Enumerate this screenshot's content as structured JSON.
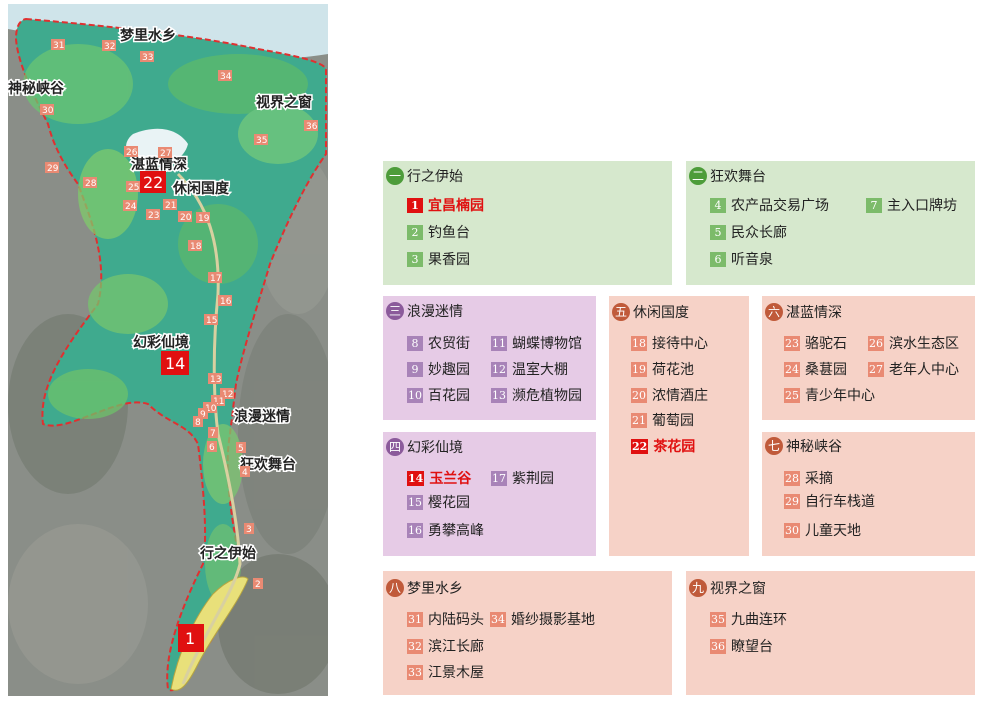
{
  "map": {
    "labels": {
      "mengli": "梦里水乡",
      "shenmi": "神秘峡谷",
      "shijie": "视界之窗",
      "zhanlan": "湛蓝情深",
      "xiuxian": "休闲国度",
      "huancai": "幻彩仙境",
      "langman": "浪漫迷情",
      "kuanghuan": "狂欢舞台",
      "xingzhi": "行之伊始"
    },
    "markers": [
      "31",
      "32",
      "33",
      "34",
      "30",
      "35",
      "36",
      "26",
      "27",
      "25",
      "23",
      "24",
      "21",
      "20",
      "19",
      "18",
      "28",
      "29",
      "17",
      "16",
      "15",
      "13",
      "12",
      "11",
      "10",
      "9",
      "8",
      "7",
      "6",
      "5",
      "4",
      "3",
      "2"
    ],
    "big": {
      "start": "1",
      "tea": "22",
      "magnolia": "14"
    }
  },
  "legend": {
    "s1": {
      "num": "一",
      "title": "行之伊始",
      "items": [
        {
          "n": "1",
          "t": "宜昌楠园"
        },
        {
          "n": "2",
          "t": "钓鱼台"
        },
        {
          "n": "3",
          "t": "果香园"
        }
      ]
    },
    "s2": {
      "num": "二",
      "title": "狂欢舞台",
      "items": [
        {
          "n": "4",
          "t": "农产品交易广场"
        },
        {
          "n": "7",
          "t": "主入口牌坊"
        },
        {
          "n": "5",
          "t": "民众长廊"
        },
        {
          "n": "6",
          "t": "听音泉"
        }
      ]
    },
    "s3": {
      "num": "三",
      "title": "浪漫迷情",
      "items": [
        {
          "n": "8",
          "t": "农贸街"
        },
        {
          "n": "11",
          "t": "蝴蝶博物馆"
        },
        {
          "n": "9",
          "t": "妙趣园"
        },
        {
          "n": "12",
          "t": "温室大棚"
        },
        {
          "n": "10",
          "t": "百花园"
        },
        {
          "n": "13",
          "t": "濒危植物园"
        }
      ]
    },
    "s4": {
      "num": "四",
      "title": "幻彩仙境",
      "items": [
        {
          "n": "14",
          "t": "玉兰谷"
        },
        {
          "n": "17",
          "t": "紫荆园"
        },
        {
          "n": "15",
          "t": "樱花园"
        },
        {
          "n": "16",
          "t": "勇攀高峰"
        }
      ]
    },
    "s5": {
      "num": "五",
      "title": "休闲国度",
      "items": [
        {
          "n": "18",
          "t": "接待中心"
        },
        {
          "n": "19",
          "t": "荷花池"
        },
        {
          "n": "20",
          "t": "浓情酒庄"
        },
        {
          "n": "21",
          "t": "葡萄园"
        },
        {
          "n": "22",
          "t": "茶花园"
        }
      ]
    },
    "s6": {
      "num": "六",
      "title": "湛蓝情深",
      "items": [
        {
          "n": "23",
          "t": "骆驼石"
        },
        {
          "n": "26",
          "t": "滨水生态区"
        },
        {
          "n": "24",
          "t": "桑葚园"
        },
        {
          "n": "27",
          "t": "老年人中心"
        },
        {
          "n": "25",
          "t": "青少年中心"
        }
      ]
    },
    "s7": {
      "num": "七",
      "title": "神秘峡谷",
      "items": [
        {
          "n": "28",
          "t": "采摘"
        },
        {
          "n": "29",
          "t": "自行车栈道"
        },
        {
          "n": "30",
          "t": "儿童天地"
        }
      ]
    },
    "s8": {
      "num": "八",
      "title": "梦里水乡",
      "items": [
        {
          "n": "31",
          "t": "内陆码头"
        },
        {
          "n": "34",
          "t": "婚纱摄影基地"
        },
        {
          "n": "32",
          "t": "滨江长廊"
        },
        {
          "n": "33",
          "t": "江景木屋"
        }
      ]
    },
    "s9": {
      "num": "九",
      "title": "视界之窗",
      "items": [
        {
          "n": "35",
          "t": "九曲连环"
        },
        {
          "n": "36",
          "t": "瞭望台"
        }
      ]
    }
  }
}
